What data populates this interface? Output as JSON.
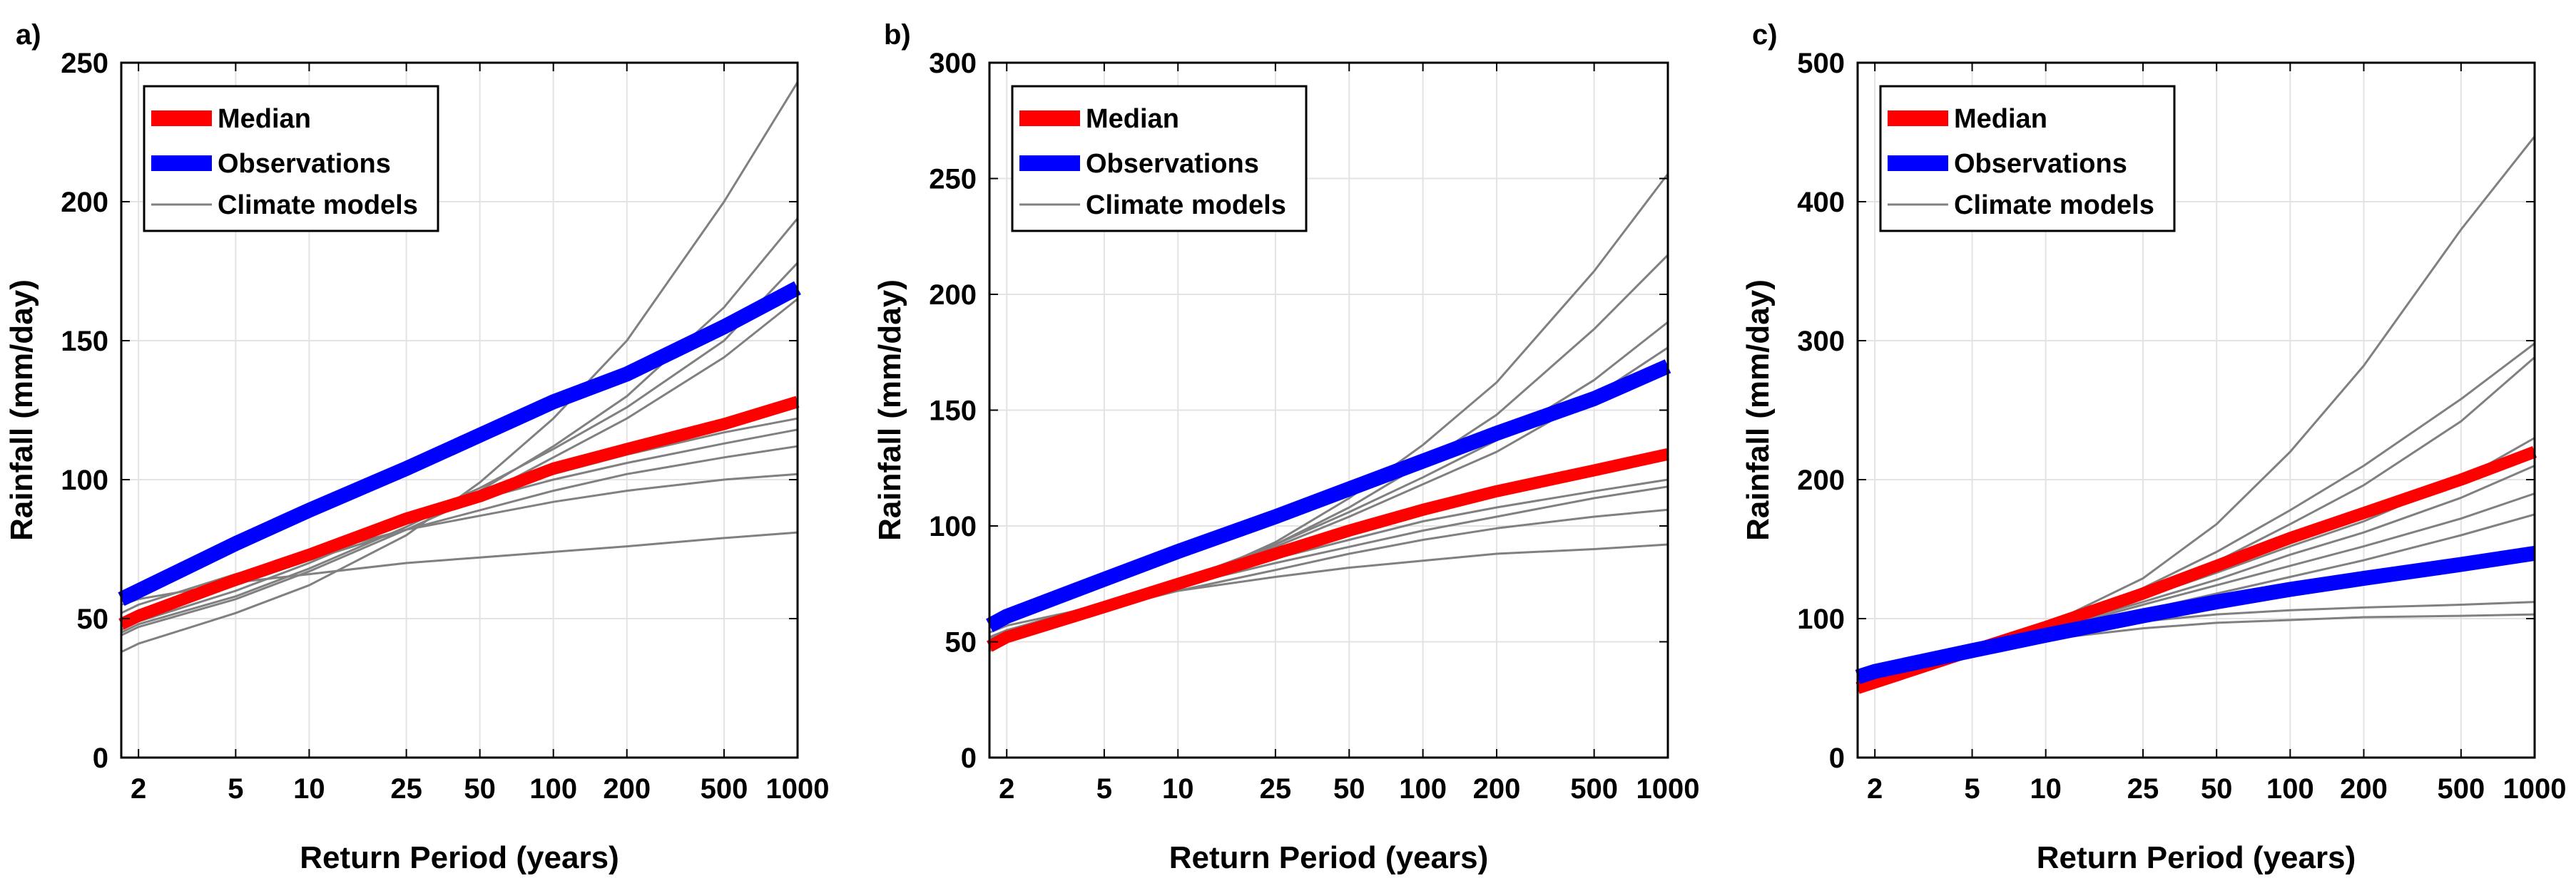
{
  "chart_data": [
    {
      "type": "line",
      "panel_label": "a)",
      "xlabel": "Return Period (years)",
      "ylabel": "Rainfall (mm/day)",
      "x_scale": "log",
      "xlim": [
        1.7,
        1000
      ],
      "ylim": [
        0,
        250
      ],
      "xticks": [
        2,
        5,
        10,
        25,
        50,
        100,
        200,
        500,
        1000
      ],
      "yticks": [
        0,
        50,
        100,
        150,
        200,
        250
      ],
      "grid": true,
      "legend_position": "top-left",
      "legend": [
        "Median",
        "Observations",
        "Climate models"
      ],
      "x": [
        1.7,
        2,
        5,
        10,
        25,
        50,
        100,
        200,
        500,
        1000
      ],
      "series": [
        {
          "name": "Observations",
          "role": "observations",
          "color": "#0000ff",
          "values": [
            57,
            60,
            77,
            89,
            104,
            116,
            128,
            138,
            155,
            169
          ]
        },
        {
          "name": "Median",
          "role": "median",
          "color": "#ff0000",
          "values": [
            48,
            51,
            64,
            73,
            86,
            94,
            104,
            111,
            120,
            128
          ]
        },
        {
          "name": "Climate models",
          "role": "model",
          "color": "#808080",
          "values": [
            38,
            41,
            52,
            62,
            80,
            99,
            122,
            150,
            200,
            243
          ]
        },
        {
          "name": "Climate models",
          "role": "model",
          "color": "#808080",
          "values": [
            45,
            48,
            58,
            68,
            83,
            96,
            112,
            130,
            162,
            194
          ]
        },
        {
          "name": "Climate models",
          "role": "model",
          "color": "#808080",
          "values": [
            46,
            49,
            60,
            70,
            85,
            97,
            111,
            126,
            150,
            178
          ]
        },
        {
          "name": "Climate models",
          "role": "model",
          "color": "#808080",
          "values": [
            44,
            47,
            57,
            67,
            82,
            94,
            108,
            122,
            144,
            165
          ]
        },
        {
          "name": "Climate models",
          "role": "model",
          "color": "#808080",
          "values": [
            49,
            52,
            64,
            73,
            85,
            94,
            102,
            109,
            117,
            122
          ]
        },
        {
          "name": "Climate models",
          "role": "model",
          "color": "#808080",
          "values": [
            50,
            53,
            65,
            74,
            86,
            93,
            100,
            106,
            113,
            118
          ]
        },
        {
          "name": "Climate models",
          "role": "model",
          "color": "#808080",
          "values": [
            47,
            50,
            62,
            71,
            82,
            89,
            96,
            102,
            108,
            112
          ]
        },
        {
          "name": "Climate models",
          "role": "model",
          "color": "#808080",
          "values": [
            52,
            55,
            66,
            73,
            82,
            87,
            92,
            96,
            100,
            102
          ]
        },
        {
          "name": "Climate models",
          "role": "model",
          "color": "#808080",
          "values": [
            55,
            57,
            63,
            66,
            70,
            72,
            74,
            76,
            79,
            81
          ]
        }
      ]
    },
    {
      "type": "line",
      "panel_label": "b)",
      "xlabel": "Return Period (years)",
      "ylabel": "Rainfall (mm/day)",
      "x_scale": "log",
      "xlim": [
        1.7,
        1000
      ],
      "ylim": [
        0,
        300
      ],
      "xticks": [
        2,
        5,
        10,
        25,
        50,
        100,
        200,
        500,
        1000
      ],
      "yticks": [
        0,
        50,
        100,
        150,
        200,
        250,
        300
      ],
      "grid": true,
      "legend_position": "top-left",
      "legend": [
        "Median",
        "Observations",
        "Climate models"
      ],
      "x": [
        1.7,
        2,
        5,
        10,
        25,
        50,
        100,
        200,
        500,
        1000
      ],
      "series": [
        {
          "name": "Observations",
          "role": "observations",
          "color": "#0000ff",
          "values": [
            57,
            61,
            77,
            89,
            104,
            116,
            128,
            140,
            155,
            169
          ]
        },
        {
          "name": "Median",
          "role": "median",
          "color": "#ff0000",
          "values": [
            48,
            52,
            65,
            75,
            88,
            98,
            107,
            115,
            124,
            131
          ]
        },
        {
          "name": "Climate models",
          "role": "model",
          "color": "#808080",
          "values": [
            46,
            50,
            63,
            74,
            93,
            112,
            135,
            162,
            210,
            252
          ]
        },
        {
          "name": "Climate models",
          "role": "model",
          "color": "#808080",
          "values": [
            47,
            51,
            64,
            75,
            92,
            108,
            127,
            148,
            185,
            217
          ]
        },
        {
          "name": "Climate models",
          "role": "model",
          "color": "#808080",
          "values": [
            48,
            52,
            65,
            76,
            92,
            106,
            121,
            137,
            163,
            188
          ]
        },
        {
          "name": "Climate models",
          "role": "model",
          "color": "#808080",
          "values": [
            49,
            53,
            66,
            76,
            91,
            104,
            118,
            132,
            156,
            177
          ]
        },
        {
          "name": "Climate models",
          "role": "model",
          "color": "#808080",
          "values": [
            50,
            54,
            66,
            75,
            88,
            98,
            108,
            117,
            126,
            132
          ]
        },
        {
          "name": "Climate models",
          "role": "model",
          "color": "#808080",
          "values": [
            51,
            55,
            67,
            75,
            86,
            94,
            102,
            108,
            115,
            120
          ]
        },
        {
          "name": "Climate models",
          "role": "model",
          "color": "#808080",
          "values": [
            52,
            55,
            66,
            74,
            84,
            91,
            98,
            104,
            112,
            117
          ]
        },
        {
          "name": "Climate models",
          "role": "model",
          "color": "#808080",
          "values": [
            50,
            53,
            64,
            72,
            81,
            88,
            94,
            99,
            104,
            107
          ]
        },
        {
          "name": "Climate models",
          "role": "model",
          "color": "#808080",
          "values": [
            54,
            57,
            66,
            72,
            78,
            82,
            85,
            88,
            90,
            92
          ]
        }
      ]
    },
    {
      "type": "line",
      "panel_label": "c)",
      "xlabel": "Return Period (years)",
      "ylabel": "Rainfall (mm/day)",
      "x_scale": "log",
      "xlim": [
        1.7,
        1000
      ],
      "ylim": [
        0,
        500
      ],
      "xticks": [
        2,
        5,
        10,
        25,
        50,
        100,
        200,
        500,
        1000
      ],
      "yticks": [
        0,
        100,
        200,
        300,
        400,
        500
      ],
      "grid": true,
      "legend_position": "top-left",
      "legend": [
        "Median",
        "Observations",
        "Climate models"
      ],
      "x": [
        1.7,
        2,
        5,
        10,
        25,
        50,
        100,
        200,
        500,
        1000
      ],
      "series": [
        {
          "name": "Observations",
          "role": "observations",
          "color": "#0000ff",
          "values": [
            58,
            62,
            77,
            88,
            102,
            112,
            121,
            129,
            139,
            147
          ]
        },
        {
          "name": "Median",
          "role": "median",
          "color": "#ff0000",
          "values": [
            50,
            54,
            77,
            94,
            118,
            138,
            158,
            176,
            200,
            220
          ]
        },
        {
          "name": "Climate models",
          "role": "model",
          "color": "#808080",
          "values": [
            48,
            53,
            75,
            95,
            129,
            168,
            220,
            282,
            380,
            447
          ]
        },
        {
          "name": "Climate models",
          "role": "model",
          "color": "#808080",
          "values": [
            50,
            55,
            77,
            95,
            122,
            148,
            178,
            210,
            258,
            298
          ]
        },
        {
          "name": "Climate models",
          "role": "model",
          "color": "#808080",
          "values": [
            51,
            55,
            76,
            93,
            118,
            141,
            168,
            196,
            242,
            288
          ]
        },
        {
          "name": "Climate models",
          "role": "model",
          "color": "#808080",
          "values": [
            52,
            56,
            76,
            92,
            115,
            133,
            152,
            170,
            200,
            230
          ]
        },
        {
          "name": "Climate models",
          "role": "model",
          "color": "#808080",
          "values": [
            53,
            57,
            77,
            92,
            112,
            128,
            146,
            162,
            187,
            210
          ]
        },
        {
          "name": "Climate models",
          "role": "model",
          "color": "#808080",
          "values": [
            54,
            58,
            77,
            91,
            110,
            124,
            138,
            152,
            172,
            190
          ]
        },
        {
          "name": "Climate models",
          "role": "model",
          "color": "#808080",
          "values": [
            54,
            58,
            76,
            89,
            106,
            118,
            130,
            142,
            160,
            175
          ]
        },
        {
          "name": "Climate models",
          "role": "model",
          "color": "#808080",
          "values": [
            56,
            60,
            76,
            87,
            98,
            103,
            106,
            108,
            110,
            112
          ]
        },
        {
          "name": "Climate models",
          "role": "model",
          "color": "#808080",
          "values": [
            57,
            61,
            76,
            85,
            93,
            97,
            99,
            101,
            102,
            103
          ]
        }
      ]
    }
  ]
}
